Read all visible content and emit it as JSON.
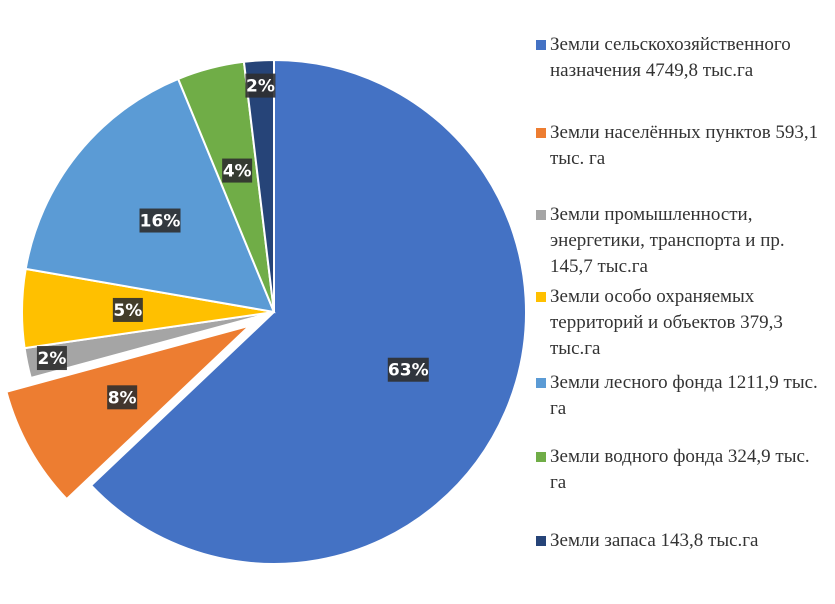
{
  "chart_data": {
    "type": "pie",
    "title": "",
    "categories": [
      "Земли сельскохозяйственного назначения 4749,8 тыс.га",
      "Земли населённых пунктов 593,1 тыс. га",
      "Земли промышленности, энергетики, транспорта и пр. 145,7 тыс.га",
      "Земли особо охраняемых территорий и объектов 379,3 тыс.га",
      "Земли лесного фонда 1211,9 тыс. га",
      "Земли водного фонда 324,9 тыс. га",
      "Земли запаса 143,8 тыс.га"
    ],
    "values": [
      4749.8,
      593.1,
      145.7,
      379.3,
      1211.9,
      324.9,
      143.8
    ],
    "labels": [
      "63%",
      "8%",
      "2%",
      "5%",
      "16%",
      "4%",
      "2%"
    ],
    "colors": [
      "#4472C4",
      "#ED7D31",
      "#A5A5A5",
      "#FFC000",
      "#5B9BD5",
      "#70AD47",
      "#264478"
    ],
    "exploded": [
      false,
      true,
      false,
      false,
      false,
      false,
      false
    ],
    "legend_position": "right"
  }
}
